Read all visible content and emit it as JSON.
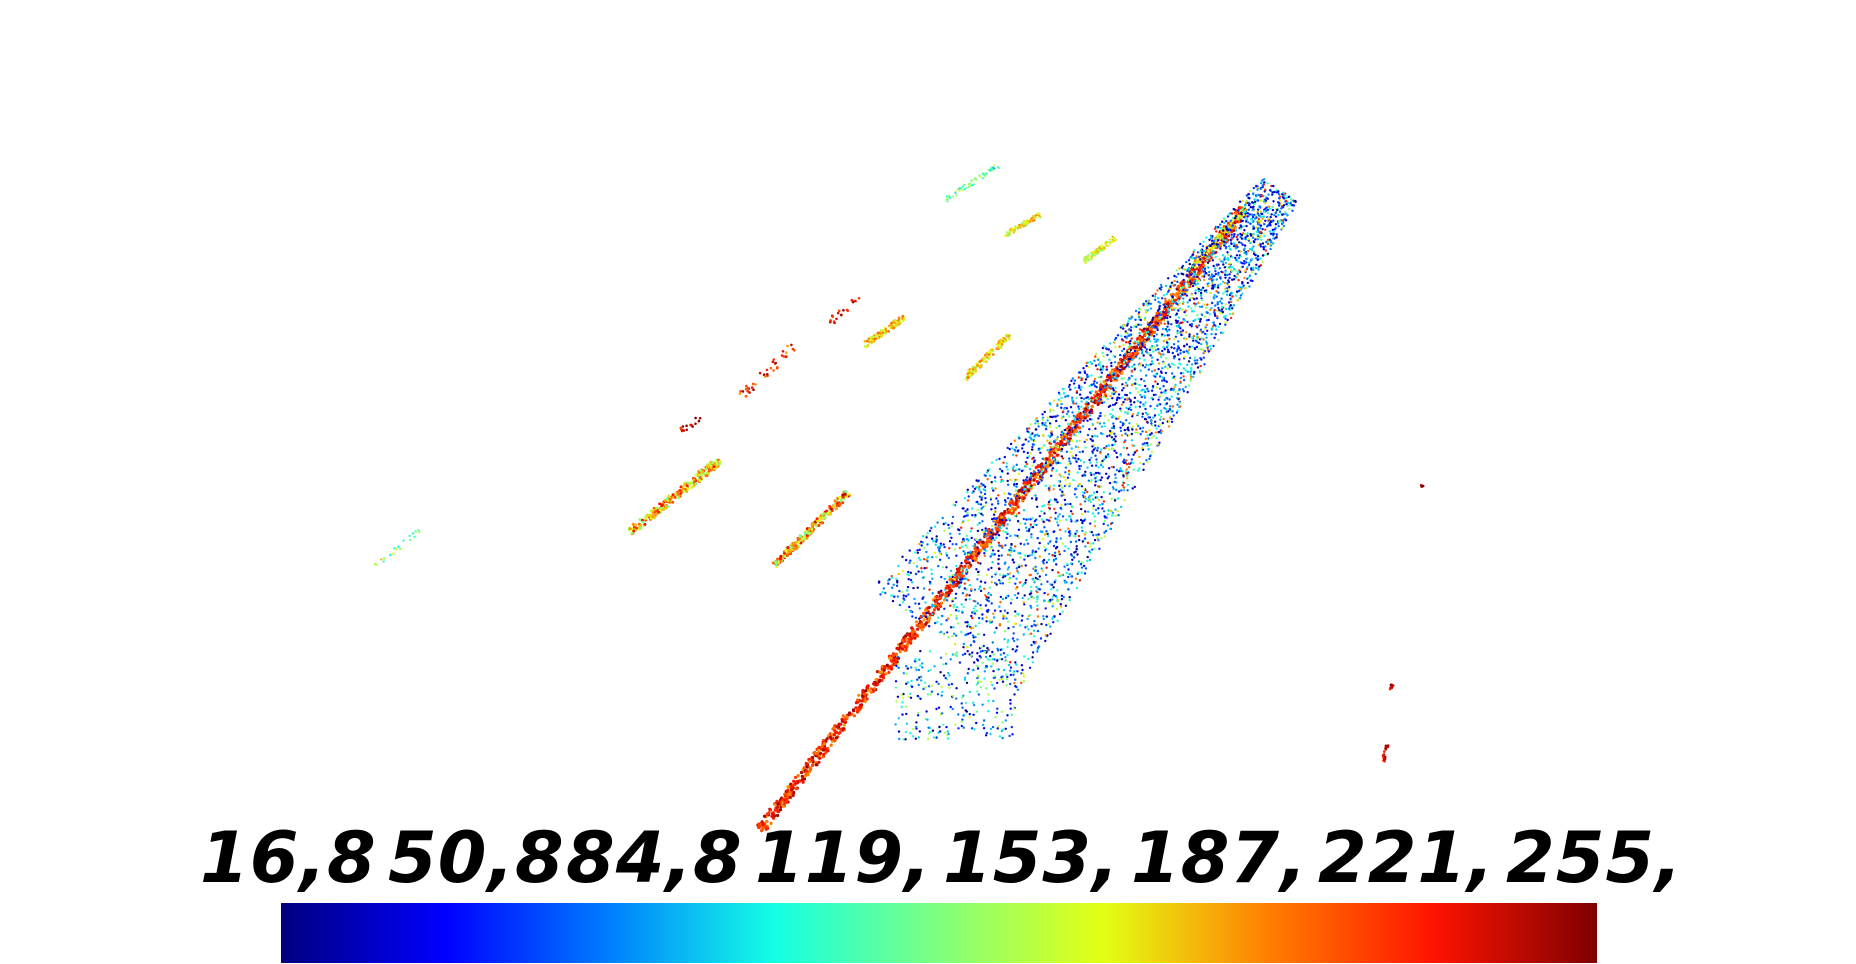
{
  "scalar_bar": {
    "tick_labels": [
      "16,8",
      "50,8",
      "84,8",
      "119,",
      "153,",
      "187,",
      "221,",
      "255,"
    ],
    "colormap": "jet",
    "colormap_stops": [
      "#00007f",
      "#0000ff",
      "#007fff",
      "#14ffe4",
      "#7fff7f",
      "#e4ff14",
      "#ff7f00",
      "#ff1400",
      "#7f0000"
    ]
  },
  "scene": {
    "background": "#ffffff",
    "content": "point cloud colored by intensity"
  }
}
